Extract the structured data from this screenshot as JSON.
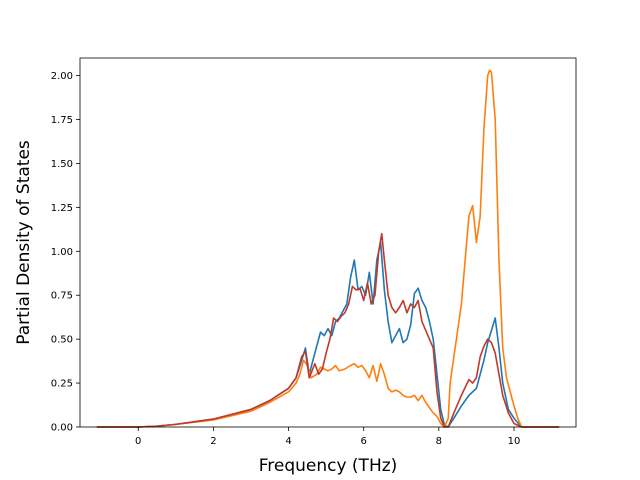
{
  "chart_data": {
    "type": "line",
    "title": "",
    "xlabel": "Frequency (THz)",
    "ylabel": "Partial Density of States",
    "xlim": [
      -1.55,
      11.65
    ],
    "ylim": [
      0.0,
      2.1
    ],
    "xticks": [
      0,
      2,
      4,
      6,
      8,
      10
    ],
    "xtick_labels": [
      "0",
      "2",
      "4",
      "6",
      "8",
      "10"
    ],
    "yticks": [
      0.0,
      0.25,
      0.5,
      0.75,
      1.0,
      1.25,
      1.5,
      1.75,
      2.0
    ],
    "ytick_labels": [
      "0.00",
      "0.25",
      "0.50",
      "0.75",
      "1.00",
      "1.25",
      "1.50",
      "1.75",
      "2.00"
    ],
    "grid": false,
    "legend": "none",
    "series": [
      {
        "color": "#1f77b4",
        "x": [
          -1.1,
          0.0,
          0.5,
          1.0,
          2.0,
          3.0,
          3.5,
          4.0,
          4.2,
          4.35,
          4.45,
          4.55,
          4.7,
          4.85,
          4.95,
          5.05,
          5.15,
          5.25,
          5.35,
          5.45,
          5.55,
          5.65,
          5.75,
          5.85,
          5.95,
          6.05,
          6.15,
          6.25,
          6.35,
          6.45,
          6.55,
          6.65,
          6.75,
          6.85,
          6.95,
          7.05,
          7.15,
          7.25,
          7.35,
          7.45,
          7.55,
          7.65,
          7.75,
          7.85,
          7.95,
          8.05,
          8.15,
          8.25,
          8.4,
          8.6,
          8.8,
          9.0,
          9.1,
          9.2,
          9.3,
          9.4,
          9.5,
          9.6,
          9.7,
          9.85,
          10.0,
          10.2,
          11.2
        ],
        "y": [
          0.0,
          0.0,
          0.005,
          0.015,
          0.045,
          0.1,
          0.15,
          0.22,
          0.28,
          0.38,
          0.45,
          0.3,
          0.42,
          0.54,
          0.52,
          0.56,
          0.52,
          0.6,
          0.62,
          0.66,
          0.7,
          0.85,
          0.95,
          0.78,
          0.8,
          0.75,
          0.88,
          0.7,
          0.95,
          1.05,
          0.78,
          0.6,
          0.48,
          0.52,
          0.56,
          0.48,
          0.5,
          0.58,
          0.76,
          0.79,
          0.72,
          0.68,
          0.6,
          0.5,
          0.3,
          0.1,
          0.01,
          0.0,
          0.05,
          0.12,
          0.18,
          0.22,
          0.3,
          0.38,
          0.48,
          0.55,
          0.62,
          0.45,
          0.25,
          0.1,
          0.05,
          0.0,
          0.0
        ]
      },
      {
        "color": "#ff7f0e",
        "x": [
          -1.1,
          0.0,
          0.5,
          1.0,
          2.0,
          3.0,
          3.5,
          4.0,
          4.2,
          4.3,
          4.4,
          4.5,
          4.6,
          4.75,
          4.85,
          4.95,
          5.05,
          5.15,
          5.25,
          5.35,
          5.5,
          5.65,
          5.75,
          5.85,
          5.95,
          6.05,
          6.15,
          6.25,
          6.35,
          6.45,
          6.55,
          6.65,
          6.75,
          6.85,
          6.95,
          7.05,
          7.15,
          7.25,
          7.35,
          7.45,
          7.55,
          7.65,
          7.75,
          7.85,
          7.95,
          8.05,
          8.15,
          8.25,
          8.3,
          8.4,
          8.5,
          8.6,
          8.7,
          8.8,
          8.9,
          9.0,
          9.1,
          9.2,
          9.3,
          9.35,
          9.4,
          9.5,
          9.6,
          9.7,
          9.8,
          9.9,
          10.0,
          10.1,
          10.2,
          11.2
        ],
        "y": [
          0.0,
          0.0,
          0.005,
          0.015,
          0.04,
          0.09,
          0.14,
          0.2,
          0.25,
          0.3,
          0.38,
          0.35,
          0.28,
          0.3,
          0.34,
          0.33,
          0.32,
          0.33,
          0.35,
          0.32,
          0.33,
          0.35,
          0.36,
          0.34,
          0.35,
          0.32,
          0.28,
          0.35,
          0.26,
          0.36,
          0.3,
          0.22,
          0.2,
          0.21,
          0.2,
          0.18,
          0.17,
          0.17,
          0.18,
          0.15,
          0.18,
          0.14,
          0.11,
          0.08,
          0.06,
          0.02,
          0.0,
          0.05,
          0.25,
          0.4,
          0.55,
          0.7,
          0.95,
          1.2,
          1.26,
          1.05,
          1.2,
          1.7,
          2.0,
          2.03,
          2.02,
          1.75,
          0.95,
          0.45,
          0.28,
          0.2,
          0.12,
          0.05,
          0.0,
          0.0
        ]
      },
      {
        "color": "#c0392b",
        "x": [
          -1.1,
          0.0,
          0.5,
          1.0,
          2.0,
          3.0,
          3.5,
          4.0,
          4.2,
          4.35,
          4.45,
          4.55,
          4.7,
          4.8,
          4.9,
          5.0,
          5.1,
          5.2,
          5.3,
          5.4,
          5.5,
          5.6,
          5.7,
          5.8,
          5.9,
          6.0,
          6.1,
          6.2,
          6.3,
          6.4,
          6.48,
          6.55,
          6.65,
          6.75,
          6.85,
          6.95,
          7.05,
          7.15,
          7.25,
          7.35,
          7.45,
          7.55,
          7.65,
          7.75,
          7.85,
          7.95,
          8.05,
          8.15,
          8.25,
          8.4,
          8.6,
          8.8,
          8.9,
          9.0,
          9.1,
          9.2,
          9.3,
          9.4,
          9.5,
          9.6,
          9.7,
          9.85,
          10.0,
          10.2,
          11.2
        ],
        "y": [
          0.0,
          0.0,
          0.005,
          0.015,
          0.045,
          0.1,
          0.15,
          0.22,
          0.28,
          0.4,
          0.43,
          0.28,
          0.36,
          0.3,
          0.33,
          0.42,
          0.5,
          0.62,
          0.6,
          0.63,
          0.65,
          0.7,
          0.8,
          0.78,
          0.79,
          0.72,
          0.82,
          0.7,
          0.75,
          1.0,
          1.1,
          0.95,
          0.75,
          0.68,
          0.65,
          0.68,
          0.72,
          0.65,
          0.7,
          0.68,
          0.72,
          0.6,
          0.55,
          0.5,
          0.45,
          0.2,
          0.05,
          0.0,
          0.0,
          0.08,
          0.18,
          0.27,
          0.25,
          0.28,
          0.4,
          0.46,
          0.5,
          0.48,
          0.42,
          0.3,
          0.18,
          0.08,
          0.02,
          0.0,
          0.0
        ]
      }
    ]
  }
}
